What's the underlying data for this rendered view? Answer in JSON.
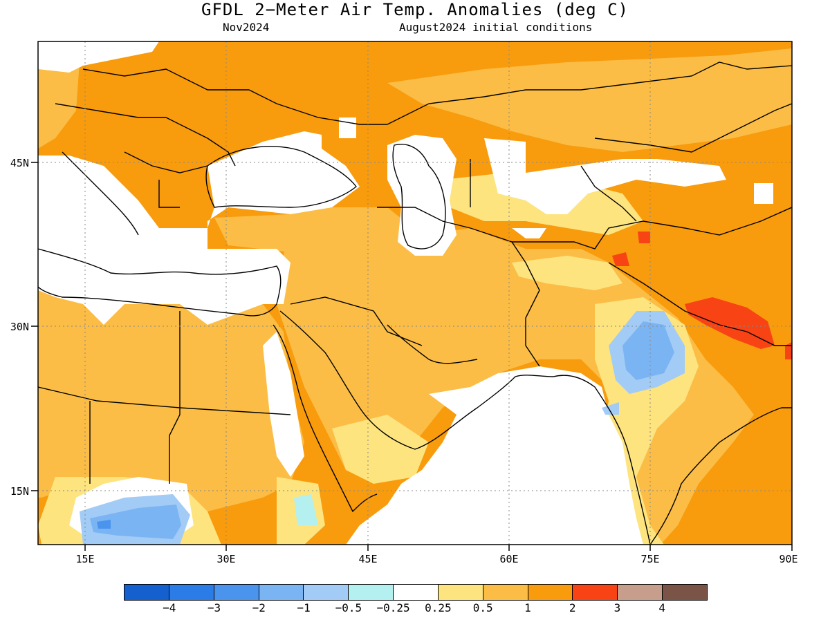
{
  "title": "GFDL 2−Meter Air Temp. Anomalies (deg C)",
  "valid_month": "Nov2024",
  "init_label": "August2024 initial conditions",
  "lat_labels": [
    "45N",
    "30N",
    "15N"
  ],
  "lon_labels": [
    "15E",
    "30E",
    "45E",
    "60E",
    "75E",
    "90E"
  ],
  "legend": {
    "colors": [
      "#1560cf",
      "#2c7ce8",
      "#4b94ee",
      "#7bb4f3",
      "#a2cbf6",
      "#b4f0f0",
      "#ffffff",
      "#fde47f",
      "#fbbd45",
      "#f89b0d",
      "#f84314",
      "#c79e8c",
      "#7a5547"
    ],
    "labels": [
      "−4",
      "−3",
      "−2",
      "−1",
      "−0.5",
      "−0.25",
      "0.25",
      "0.5",
      "1",
      "2",
      "3",
      "4"
    ]
  },
  "colors": {
    "anom_0_25_0_5": "#fde47f",
    "anom_0_5_1": "#fbbd45",
    "anom_1_2": "#f89b0d",
    "anom_2_3": "#f84314",
    "anom_neg": "#7bb4f3"
  }
}
